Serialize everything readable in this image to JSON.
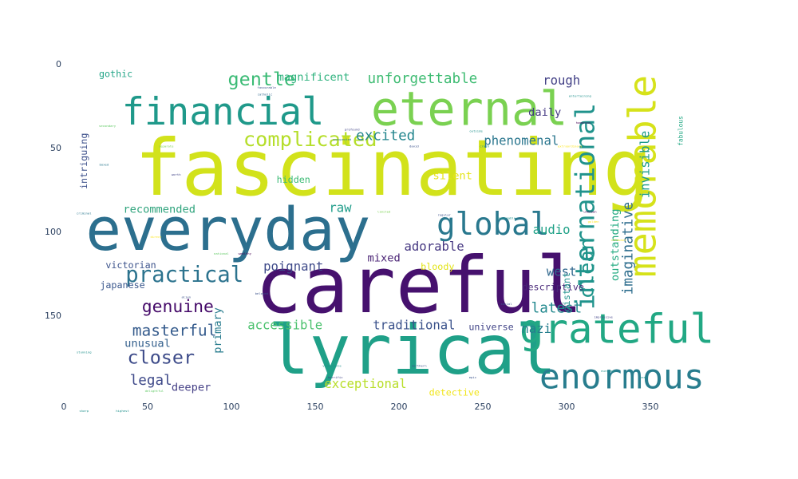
{
  "chart_data": {
    "type": "wordcloud",
    "title": "",
    "xlabel": "",
    "ylabel": "",
    "xlim": [
      0,
      400
    ],
    "ylim": [
      0,
      200
    ],
    "x_ticks": [
      0,
      50,
      100,
      150,
      200,
      250,
      300,
      350
    ],
    "y_ticks": [
      0,
      50,
      100,
      150
    ],
    "y_axis_direction": "top-down",
    "colormap": "viridis",
    "words": [
      {
        "text": "fascinating",
        "x": 196,
        "y": 62,
        "size": 50,
        "color": "#d2e21b"
      },
      {
        "text": "careful",
        "x": 212,
        "y": 132,
        "size": 50,
        "color": "#46116e"
      },
      {
        "text": "everyday",
        "x": 98,
        "y": 99,
        "size": 38,
        "color": "#2c6f8e"
      },
      {
        "text": "lyrical",
        "x": 208,
        "y": 171,
        "size": 44,
        "color": "#1fa088"
      },
      {
        "text": "eternal",
        "x": 242,
        "y": 27,
        "size": 30,
        "color": "#7ad151"
      },
      {
        "text": "financial",
        "x": 95,
        "y": 29,
        "size": 24,
        "color": "#1f998a"
      },
      {
        "text": "memorable",
        "x": 346,
        "y": 67,
        "size": 24,
        "color": "#d6e21a",
        "rotate": -90
      },
      {
        "text": "grateful",
        "x": 330,
        "y": 158,
        "size": 26,
        "color": "#22a884"
      },
      {
        "text": "enormous",
        "x": 333,
        "y": 187,
        "size": 22,
        "color": "#287d8e"
      },
      {
        "text": "global",
        "x": 256,
        "y": 96,
        "size": 20,
        "color": "#29788e"
      },
      {
        "text": "international",
        "x": 311,
        "y": 85,
        "size": 17,
        "color": "#20938c",
        "rotate": -90
      },
      {
        "text": "complicated",
        "x": 147,
        "y": 45,
        "size": 13,
        "color": "#b5de2b"
      },
      {
        "text": "gentle",
        "x": 118,
        "y": 9,
        "size": 12,
        "color": "#3bbb75"
      },
      {
        "text": "practical",
        "x": 72,
        "y": 126,
        "size": 14,
        "color": "#2c738e"
      },
      {
        "text": "genuine",
        "x": 68,
        "y": 145,
        "size": 11,
        "color": "#450a69"
      },
      {
        "text": "masterful",
        "x": 66,
        "y": 159,
        "size": 10,
        "color": "#365c8d"
      },
      {
        "text": "closer",
        "x": 58,
        "y": 175,
        "size": 12,
        "color": "#3e4c8a"
      },
      {
        "text": "legal",
        "x": 52,
        "y": 189,
        "size": 9,
        "color": "#3e4989"
      },
      {
        "text": "unforgettable",
        "x": 214,
        "y": 9,
        "size": 9,
        "color": "#3fbc73"
      },
      {
        "text": "magnificent",
        "x": 149,
        "y": 8,
        "size": 7,
        "color": "#2db27d"
      },
      {
        "text": "gothic",
        "x": 31,
        "y": 6,
        "size": 6,
        "color": "#20a486"
      },
      {
        "text": "rough",
        "x": 297,
        "y": 10,
        "size": 8,
        "color": "#424086"
      },
      {
        "text": "daily",
        "x": 287,
        "y": 29,
        "size": 7,
        "color": "#443a83"
      },
      {
        "text": "excited",
        "x": 192,
        "y": 43,
        "size": 9,
        "color": "#24868e"
      },
      {
        "text": "phenomenal",
        "x": 273,
        "y": 46,
        "size": 8,
        "color": "#2a768e"
      },
      {
        "text": "clean",
        "x": 312,
        "y": 122,
        "size": 13,
        "color": "#1f958b",
        "rotate": -90
      },
      {
        "text": "imaginative",
        "x": 337,
        "y": 110,
        "size": 9,
        "color": "#2e6e8e",
        "rotate": -90
      },
      {
        "text": "invisible",
        "x": 347,
        "y": 60,
        "size": 8,
        "color": "#1e9b8a",
        "rotate": -90
      },
      {
        "text": "outstanding",
        "x": 329,
        "y": 108,
        "size": 7,
        "color": "#25ab82",
        "rotate": -90
      },
      {
        "text": "silent",
        "x": 232,
        "y": 67,
        "size": 7,
        "color": "#e5e419"
      },
      {
        "text": "hidden",
        "x": 137,
        "y": 69,
        "size": 6,
        "color": "#3cbb75"
      },
      {
        "text": "recommended",
        "x": 57,
        "y": 87,
        "size": 7,
        "color": "#2ea37c"
      },
      {
        "text": "raw",
        "x": 165,
        "y": 86,
        "size": 8,
        "color": "#1e9c89"
      },
      {
        "text": "audio",
        "x": 291,
        "y": 99,
        "size": 8,
        "color": "#1fa187"
      },
      {
        "text": "adorable",
        "x": 221,
        "y": 109,
        "size": 8,
        "color": "#453781"
      },
      {
        "text": "bloody",
        "x": 223,
        "y": 121,
        "size": 6,
        "color": "#e2e418"
      },
      {
        "text": "mixed",
        "x": 191,
        "y": 116,
        "size": 7,
        "color": "#482173"
      },
      {
        "text": "poignant",
        "x": 137,
        "y": 121,
        "size": 8,
        "color": "#3e4a89"
      },
      {
        "text": "victorian",
        "x": 40,
        "y": 120,
        "size": 6,
        "color": "#3b528b"
      },
      {
        "text": "japanese",
        "x": 35,
        "y": 132,
        "size": 6,
        "color": "#39568c"
      },
      {
        "text": "west",
        "x": 297,
        "y": 124,
        "size": 8,
        "color": "#31688e"
      },
      {
        "text": "descriptive",
        "x": 292,
        "y": 133,
        "size": 6,
        "color": "#482878"
      },
      {
        "text": "latest",
        "x": 294,
        "y": 146,
        "size": 9,
        "color": "#23898e"
      },
      {
        "text": "nazi",
        "x": 282,
        "y": 158,
        "size": 8,
        "color": "#277f8e"
      },
      {
        "text": "accessible",
        "x": 132,
        "y": 156,
        "size": 8,
        "color": "#4ac16d"
      },
      {
        "text": "traditional",
        "x": 209,
        "y": 156,
        "size": 8,
        "color": "#3b528b"
      },
      {
        "text": "primary",
        "x": 92,
        "y": 159,
        "size": 7,
        "color": "#287c8e",
        "rotate": -90
      },
      {
        "text": "unusual",
        "x": 50,
        "y": 167,
        "size": 7,
        "color": "#34608d"
      },
      {
        "text": "universe",
        "x": 255,
        "y": 157,
        "size": 6,
        "color": "#414487"
      },
      {
        "text": "deeper",
        "x": 76,
        "y": 193,
        "size": 7,
        "color": "#433e85"
      },
      {
        "text": "exceptional",
        "x": 180,
        "y": 191,
        "size": 8,
        "color": "#b8de29"
      },
      {
        "text": "detective",
        "x": 233,
        "y": 196,
        "size": 6,
        "color": "#f1e51d"
      },
      {
        "text": "intriguing",
        "x": 12,
        "y": 58,
        "size": 6,
        "color": "#3c4f8a",
        "rotate": -90
      },
      {
        "text": "distant",
        "x": 300,
        "y": 136,
        "size": 6,
        "color": "#20928c",
        "rotate": -90
      },
      {
        "text": "secondary",
        "x": 26,
        "y": 37,
        "size": 2,
        "color": "#5ec962"
      },
      {
        "text": "favourable",
        "x": 121,
        "y": 14,
        "size": 2,
        "color": "#3b528b"
      },
      {
        "text": "catholic",
        "x": 120,
        "y": 18,
        "size": 2,
        "color": "#31688e"
      },
      {
        "text": "profound",
        "x": 172,
        "y": 39,
        "size": 2,
        "color": "#414487"
      },
      {
        "text": "unexpected",
        "x": 166,
        "y": 45,
        "size": 2,
        "color": "#2a788e"
      },
      {
        "text": "outside",
        "x": 246,
        "y": 40,
        "size": 2,
        "color": "#21918c"
      },
      {
        "text": "separate",
        "x": 61,
        "y": 49,
        "size": 2,
        "color": "#7ad151"
      },
      {
        "text": "crash",
        "x": 251,
        "y": 49,
        "size": 2,
        "color": "#21918c"
      },
      {
        "text": "david",
        "x": 209,
        "y": 49,
        "size": 2,
        "color": "#3b528b"
      },
      {
        "text": "extraordinary",
        "x": 302,
        "y": 49,
        "size": 2,
        "color": "#fde725"
      },
      {
        "text": "entertaining",
        "x": 308,
        "y": 19,
        "size": 2,
        "color": "#21918c"
      },
      {
        "text": "humorous",
        "x": 310,
        "y": 35,
        "size": 2,
        "color": "#440154"
      },
      {
        "text": "fabulous",
        "x": 368,
        "y": 40,
        "size": 4,
        "color": "#22a884",
        "rotate": -90
      },
      {
        "text": "boxed",
        "x": 24,
        "y": 60,
        "size": 2,
        "color": "#2a788e"
      },
      {
        "text": "worth",
        "x": 67,
        "y": 66,
        "size": 2,
        "color": "#414487"
      },
      {
        "text": "criminal",
        "x": 12,
        "y": 89,
        "size": 2,
        "color": "#2a788e"
      },
      {
        "text": "limited",
        "x": 191,
        "y": 88,
        "size": 2,
        "color": "#7ad151"
      },
      {
        "text": "regular",
        "x": 227,
        "y": 90,
        "size": 2,
        "color": "#3b528b"
      },
      {
        "text": "remarkable",
        "x": 264,
        "y": 92,
        "size": 2,
        "color": "#21918c"
      },
      {
        "text": "unknown",
        "x": 314,
        "y": 88,
        "size": 2,
        "color": "#440154"
      },
      {
        "text": "golden",
        "x": 316,
        "y": 94,
        "size": 2,
        "color": "#fde725"
      },
      {
        "text": "direct",
        "x": 55,
        "y": 103,
        "size": 2,
        "color": "#fde725"
      },
      {
        "text": "relevant",
        "x": 331,
        "y": 105,
        "size": 2,
        "color": "#fde725"
      },
      {
        "text": "national",
        "x": 94,
        "y": 113,
        "size": 2,
        "color": "#5ec962"
      },
      {
        "text": "wealthy",
        "x": 108,
        "y": 113,
        "size": 2,
        "color": "#440154"
      },
      {
        "text": "beloved",
        "x": 118,
        "y": 137,
        "size": 2,
        "color": "#3b528b"
      },
      {
        "text": "social",
        "x": 264,
        "y": 143,
        "size": 2,
        "color": "#3b528b"
      },
      {
        "text": "alien",
        "x": 73,
        "y": 139,
        "size": 2,
        "color": "#3b528b"
      },
      {
        "text": "impressive",
        "x": 322,
        "y": 151,
        "size": 2,
        "color": "#414487"
      },
      {
        "text": "stunning",
        "x": 12,
        "y": 172,
        "size": 2,
        "color": "#21918c"
      },
      {
        "text": "vulnerable",
        "x": 160,
        "y": 180,
        "size": 2,
        "color": "#21918c"
      },
      {
        "text": "horrific",
        "x": 162,
        "y": 187,
        "size": 2,
        "color": "#414487"
      },
      {
        "text": "northern",
        "x": 212,
        "y": 180,
        "size": 2,
        "color": "#3b528b"
      },
      {
        "text": "epic",
        "x": 244,
        "y": 187,
        "size": 2,
        "color": "#3b528b"
      },
      {
        "text": "european",
        "x": 325,
        "y": 183,
        "size": 2,
        "color": "#21918c"
      },
      {
        "text": "near",
        "x": 346,
        "y": 187,
        "size": 2,
        "color": "#21918c"
      },
      {
        "text": "delightful",
        "x": 54,
        "y": 195,
        "size": 2,
        "color": "#5ec962"
      },
      {
        "text": "sharp",
        "x": 12,
        "y": 207,
        "size": 2,
        "color": "#21918c"
      },
      {
        "text": "highest",
        "x": 35,
        "y": 207,
        "size": 2,
        "color": "#21918c"
      }
    ]
  }
}
